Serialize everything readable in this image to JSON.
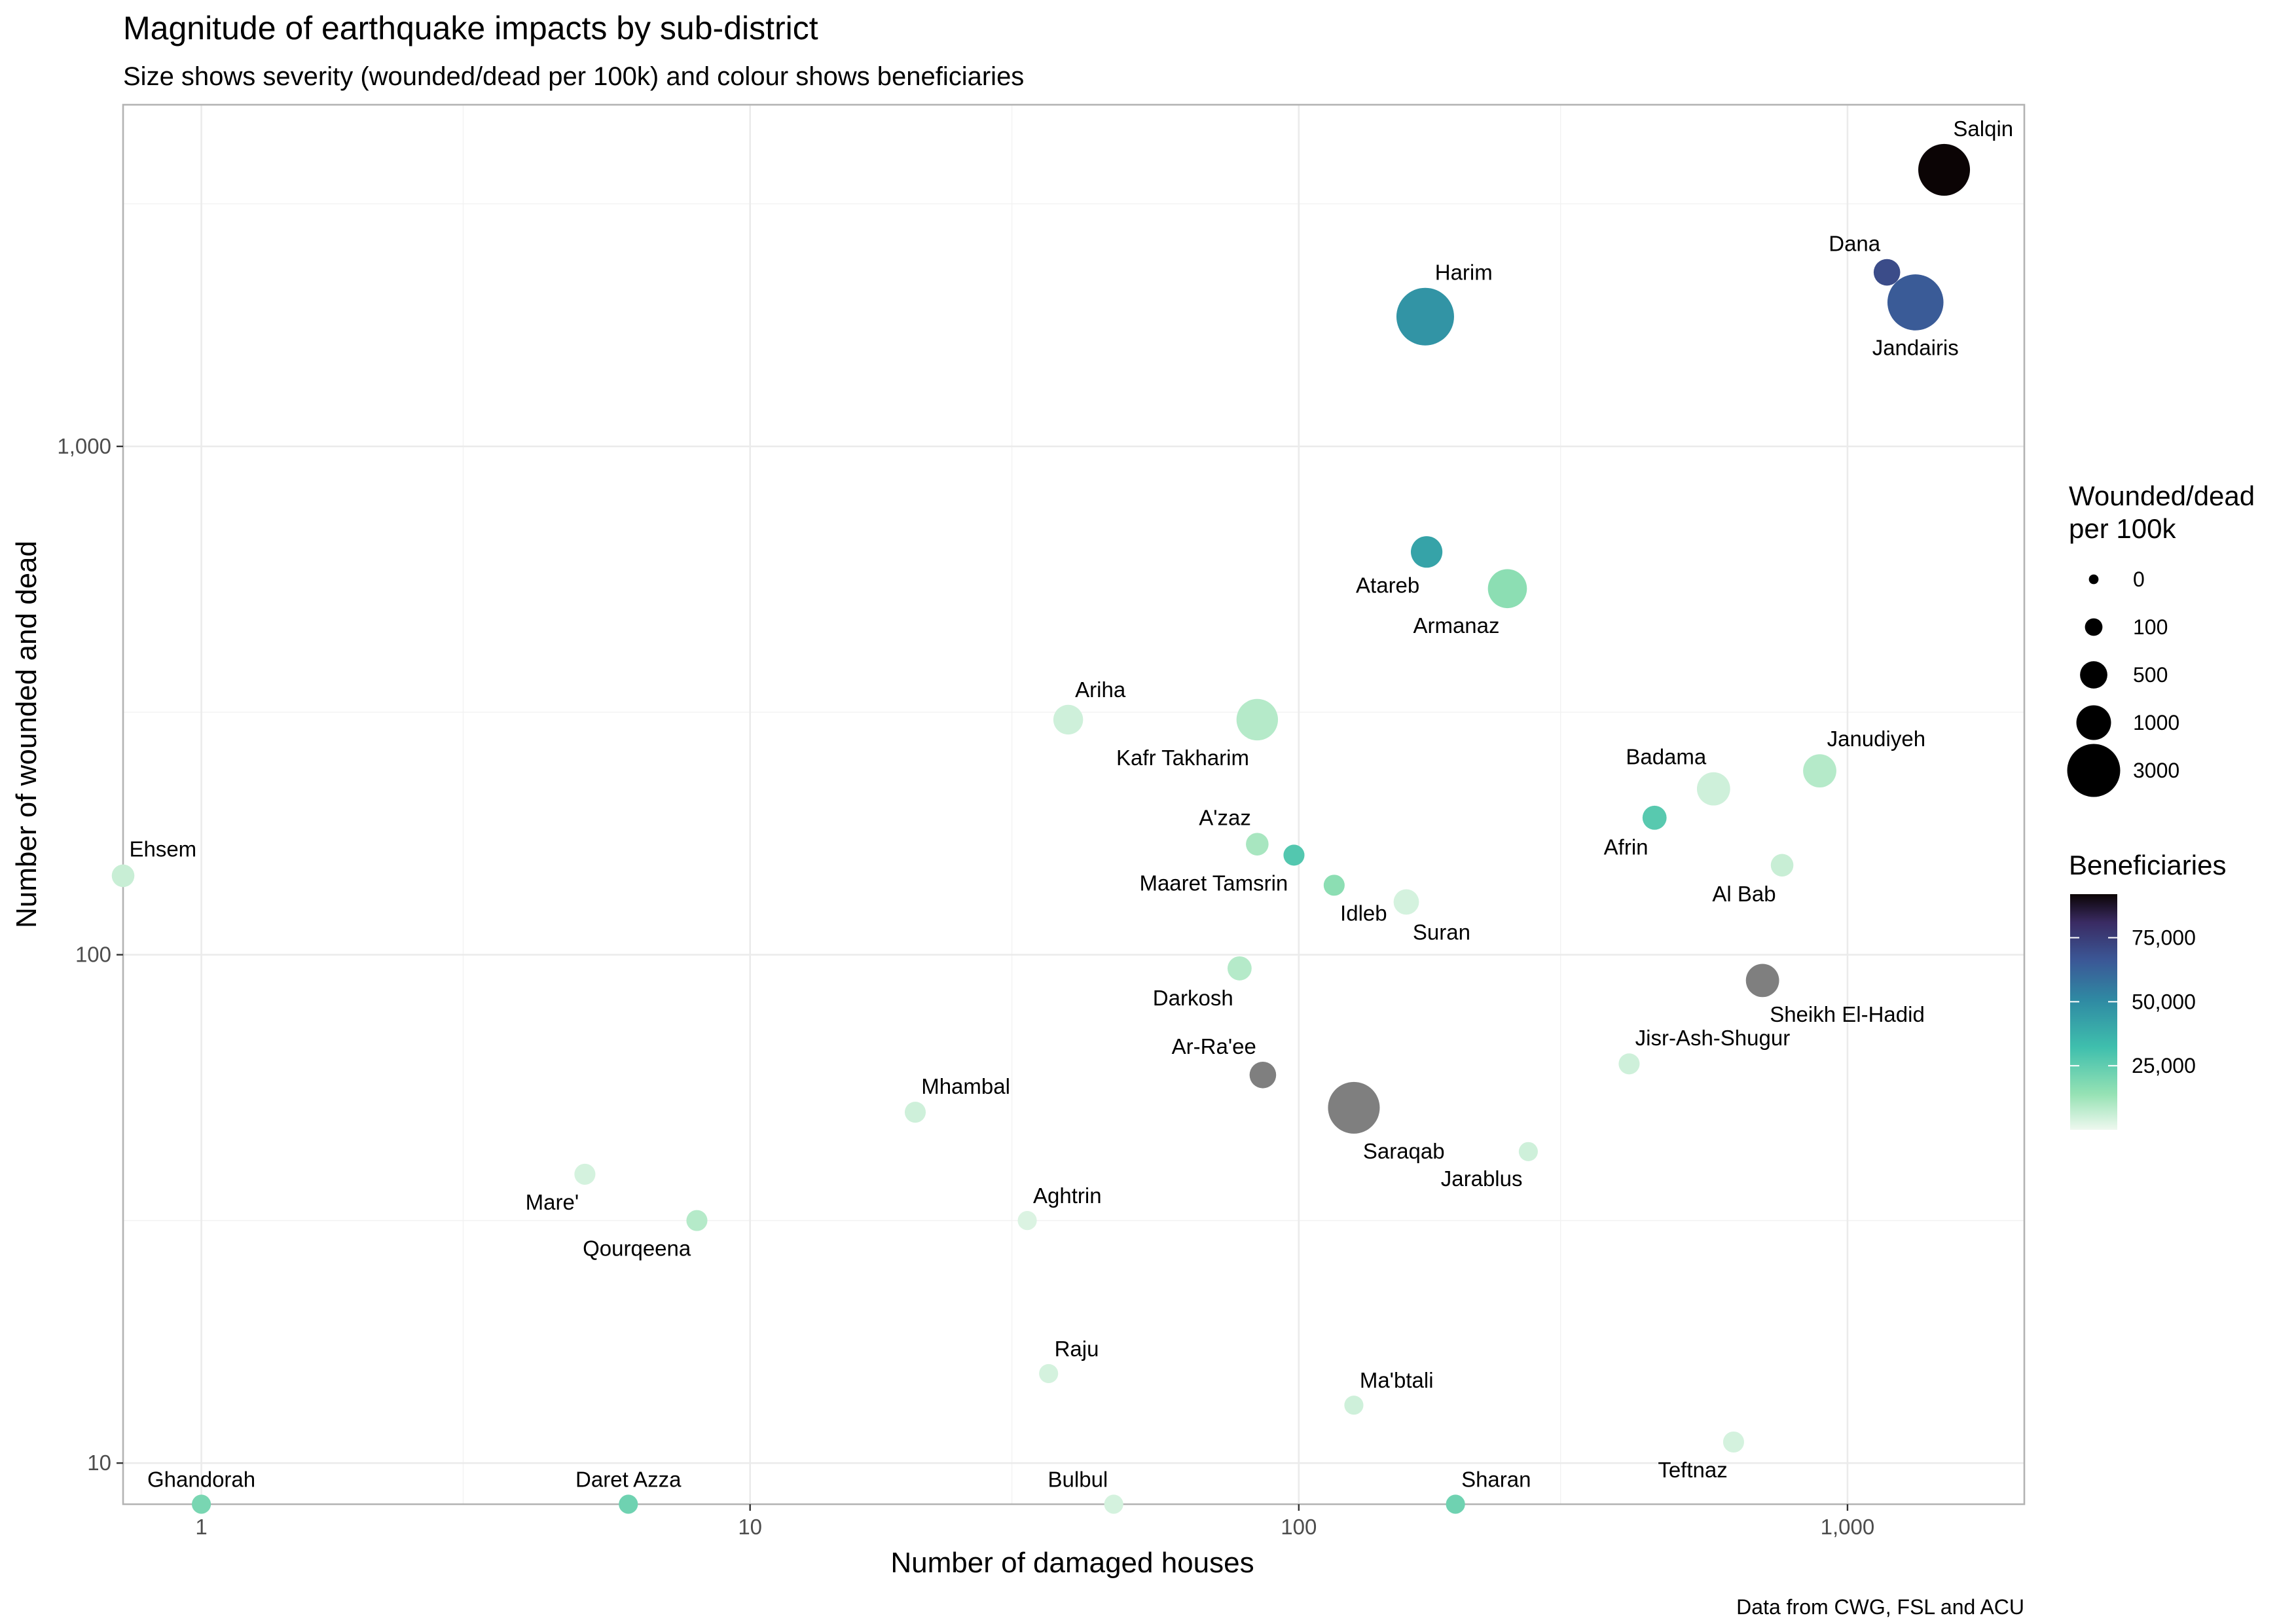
{
  "chart_data": {
    "type": "scatter",
    "title": "Magnitude of earthquake impacts by sub-district",
    "subtitle": "Size shows severity (wounded/dead per 100k) and colour shows beneficiaries",
    "caption": "Data from CWG, FSL and ACU",
    "xlabel": "Number of damaged houses",
    "ylabel": "Number of wounded and dead",
    "x_scale": "log10",
    "y_scale": "log10",
    "xlim": [
      0.72,
      2100
    ],
    "ylim": [
      8.3,
      4700
    ],
    "x_ticks": [
      {
        "value": 1,
        "label": "1"
      },
      {
        "value": 10,
        "label": "10"
      },
      {
        "value": 100,
        "label": "100"
      },
      {
        "value": 1000,
        "label": "1,000"
      }
    ],
    "y_ticks": [
      {
        "value": 10,
        "label": "10"
      },
      {
        "value": 100,
        "label": "100"
      },
      {
        "value": 1000,
        "label": "1,000"
      }
    ],
    "grid": true,
    "legend_size": {
      "title_line1": "Wounded/dead",
      "title_line2": "per 100k",
      "entries": [
        {
          "label": "0",
          "value": 0
        },
        {
          "label": "100",
          "value": 100
        },
        {
          "label": "500",
          "value": 500
        },
        {
          "label": "1000",
          "value": 1000
        },
        {
          "label": "3000",
          "value": 3000
        }
      ]
    },
    "legend_color": {
      "title": "Beneficiaries",
      "range": [
        0,
        92000
      ],
      "ticks": [
        {
          "value": 25000,
          "label": "25,000"
        },
        {
          "value": 50000,
          "label": "50,000"
        },
        {
          "value": 75000,
          "label": "75,000"
        }
      ],
      "na_color": "#7f7f7f"
    },
    "points": [
      {
        "name": "Salqin",
        "x": 1500,
        "y": 3500,
        "severity": 2300,
        "beneficiaries": 92000,
        "label_pos": "above-right"
      },
      {
        "name": "Dana",
        "x": 1180,
        "y": 2200,
        "severity": 350,
        "beneficiaries": 70000,
        "label_pos": "above-left"
      },
      {
        "name": "Jandairis",
        "x": 1330,
        "y": 1920,
        "severity": 2800,
        "beneficiaries": 65000,
        "label_pos": "below"
      },
      {
        "name": "Harim",
        "x": 170,
        "y": 1800,
        "severity": 3000,
        "beneficiaries": 47000,
        "label_pos": "above-right"
      },
      {
        "name": "Atareb",
        "x": 171,
        "y": 620,
        "severity": 600,
        "beneficiaries": 42000,
        "label_pos": "below-left"
      },
      {
        "name": "Armanaz",
        "x": 240,
        "y": 525,
        "severity": 1100,
        "beneficiaries": 16000,
        "label_pos": "below-left"
      },
      {
        "name": "Ariha",
        "x": 38,
        "y": 290,
        "severity": 500,
        "beneficiaries": 5000,
        "label_pos": "above-right"
      },
      {
        "name": "Kafr Takharim",
        "x": 84,
        "y": 290,
        "severity": 1300,
        "beneficiaries": 9000,
        "label_pos": "below-left"
      },
      {
        "name": "Badama",
        "x": 570,
        "y": 212,
        "severity": 700,
        "beneficiaries": 5000,
        "label_pos": "above-left"
      },
      {
        "name": "Janudiyeh",
        "x": 890,
        "y": 230,
        "severity": 700,
        "beneficiaries": 9000,
        "label_pos": "above-right"
      },
      {
        "name": "Afrin",
        "x": 445,
        "y": 186,
        "severity": 250,
        "beneficiaries": 27000,
        "label_pos": "below-left"
      },
      {
        "name": "Ehsem",
        "x": 0.72,
        "y": 143,
        "severity": 200,
        "beneficiaries": 6000,
        "label_pos": "above-right"
      },
      {
        "name": "A'zaz",
        "x": 84,
        "y": 165,
        "severity": 200,
        "beneficiaries": 11000,
        "label_pos": "above-left"
      },
      {
        "name": "Maaret Tamsrin",
        "x": 98,
        "y": 157,
        "severity": 150,
        "beneficiaries": 28000,
        "label_pos": "below-left"
      },
      {
        "name": "Idleb",
        "x": 116,
        "y": 137,
        "severity": 150,
        "beneficiaries": 16000,
        "label_pos": "below-right"
      },
      {
        "name": "Suran",
        "x": 157,
        "y": 127,
        "severity": 300,
        "beneficiaries": 4000,
        "label_pos": "below-right"
      },
      {
        "name": "Al Bab",
        "x": 760,
        "y": 150,
        "severity": 200,
        "beneficiaries": 6000,
        "label_pos": "below-left"
      },
      {
        "name": "Darkosh",
        "x": 78,
        "y": 94,
        "severity": 250,
        "beneficiaries": 9000,
        "label_pos": "below-left"
      },
      {
        "name": "Sheikh El-Hadid",
        "x": 700,
        "y": 89,
        "severity": 700,
        "beneficiaries": null,
        "label_pos": "below-right"
      },
      {
        "name": "Ar-Ra'ee",
        "x": 86,
        "y": 58,
        "severity": 350,
        "beneficiaries": null,
        "label_pos": "above-left"
      },
      {
        "name": "Saraqab",
        "x": 126,
        "y": 50,
        "severity": 2300,
        "beneficiaries": null,
        "label_pos": "below-right"
      },
      {
        "name": "Jisr-Ash-Shugur",
        "x": 400,
        "y": 61,
        "severity": 150,
        "beneficiaries": 5000,
        "label_pos": "above-right"
      },
      {
        "name": "Mhambal",
        "x": 20,
        "y": 49,
        "severity": 150,
        "beneficiaries": 5000,
        "label_pos": "above-right"
      },
      {
        "name": "Jarablus",
        "x": 262,
        "y": 41,
        "severity": 100,
        "beneficiaries": 5000,
        "label_pos": "below-left"
      },
      {
        "name": "Mare'",
        "x": 5,
        "y": 37,
        "severity": 150,
        "beneficiaries": 4000,
        "label_pos": "below-left"
      },
      {
        "name": "Qourqeena",
        "x": 8,
        "y": 30,
        "severity": 150,
        "beneficiaries": 9000,
        "label_pos": "below-left"
      },
      {
        "name": "Aghtrin",
        "x": 32,
        "y": 30,
        "severity": 100,
        "beneficiaries": 3000,
        "label_pos": "above-right"
      },
      {
        "name": "Raju",
        "x": 35,
        "y": 15,
        "severity": 100,
        "beneficiaries": 4000,
        "label_pos": "above-right"
      },
      {
        "name": "Ma'btali",
        "x": 126,
        "y": 13,
        "severity": 100,
        "beneficiaries": 5000,
        "label_pos": "above-right"
      },
      {
        "name": "Teftnaz",
        "x": 620,
        "y": 11,
        "severity": 150,
        "beneficiaries": 4000,
        "label_pos": "below-left"
      },
      {
        "name": "Ghandorah",
        "x": 1,
        "y": 8.3,
        "severity": 100,
        "beneficiaries": 20000,
        "label_pos": "above"
      },
      {
        "name": "Daret Azza",
        "x": 6,
        "y": 8.3,
        "severity": 100,
        "beneficiaries": 22000,
        "label_pos": "above"
      },
      {
        "name": "Bulbul",
        "x": 46,
        "y": 8.3,
        "severity": 100,
        "beneficiaries": 4000,
        "label_pos": "above-left"
      },
      {
        "name": "Sharan",
        "x": 193,
        "y": 8.3,
        "severity": 100,
        "beneficiaries": 22000,
        "label_pos": "above-right"
      }
    ]
  }
}
